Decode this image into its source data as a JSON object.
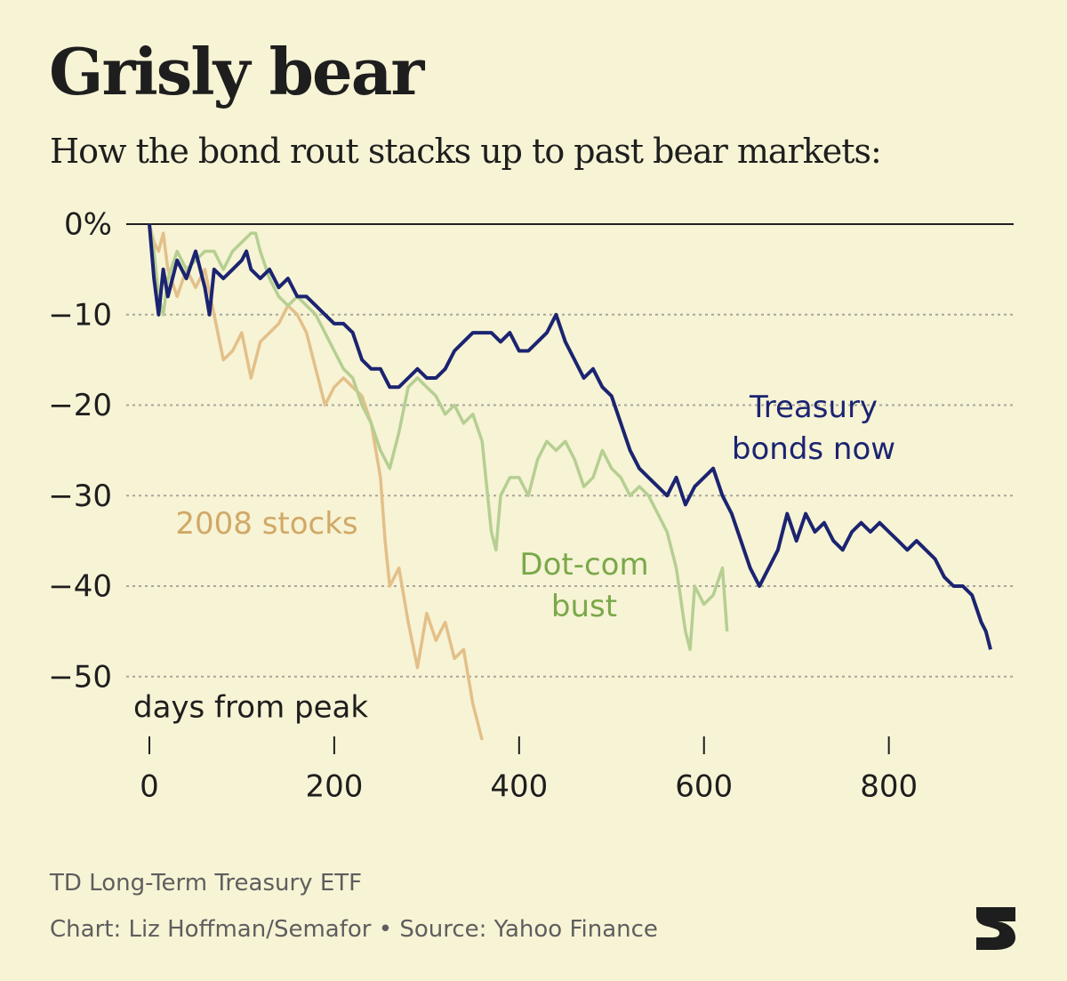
{
  "chart_data": {
    "type": "line",
    "title": "Grisly bear",
    "subtitle": "How the bond rout stacks up to past bear markets:",
    "x_label": "days from peak",
    "note": "TD Long-Term Treasury ETF",
    "source": "Chart: Liz Hoffman/Semafor • Source: Yahoo Finance",
    "xlim": [
      -25,
      935
    ],
    "xticks": [
      0,
      200,
      400,
      600,
      800
    ],
    "ylim": [
      -57,
      0
    ],
    "yticks": [
      {
        "value": 0,
        "label": "0%"
      },
      {
        "value": -10,
        "label": "−10"
      },
      {
        "value": -20,
        "label": "−20"
      },
      {
        "value": -30,
        "label": "−30"
      },
      {
        "value": -40,
        "label": "−40"
      },
      {
        "value": -50,
        "label": "−50"
      }
    ],
    "grid": true,
    "series": [
      {
        "name": "2008 stocks",
        "color": "#e3c089",
        "x": [
          0,
          5,
          10,
          15,
          20,
          30,
          40,
          50,
          60,
          70,
          80,
          90,
          100,
          110,
          120,
          130,
          140,
          150,
          160,
          170,
          180,
          190,
          200,
          210,
          220,
          230,
          240,
          250,
          255,
          260,
          270,
          280,
          290,
          300,
          310,
          320,
          330,
          340,
          350,
          355,
          360
        ],
        "values": [
          0,
          -2,
          -3,
          -1,
          -5,
          -8,
          -5,
          -7,
          -5,
          -10,
          -15,
          -14,
          -12,
          -17,
          -13,
          -12,
          -11,
          -9,
          -10,
          -12,
          -16,
          -20,
          -18,
          -17,
          -18,
          -19,
          -22,
          -28,
          -35,
          -40,
          -38,
          -44,
          -49,
          -43,
          -46,
          -44,
          -48,
          -47,
          -53,
          -55,
          -57
        ]
      },
      {
        "name": "Dot-com bust",
        "color": "#b5cf91",
        "x": [
          0,
          5,
          10,
          15,
          20,
          30,
          40,
          50,
          60,
          70,
          80,
          90,
          100,
          110,
          115,
          120,
          130,
          140,
          150,
          160,
          170,
          180,
          190,
          200,
          210,
          220,
          230,
          240,
          250,
          260,
          270,
          280,
          290,
          300,
          310,
          320,
          330,
          340,
          350,
          360,
          370,
          375,
          380,
          390,
          400,
          410,
          420,
          430,
          440,
          450,
          460,
          470,
          480,
          490,
          500,
          510,
          520,
          530,
          540,
          550,
          560,
          570,
          580,
          585,
          590,
          600,
          610,
          620,
          625
        ],
        "values": [
          0,
          -3,
          -8,
          -10,
          -6,
          -3,
          -5,
          -4,
          -3,
          -3,
          -5,
          -3,
          -2,
          -1,
          -1,
          -3,
          -6,
          -8,
          -9,
          -8,
          -9,
          -10,
          -12,
          -14,
          -16,
          -17,
          -20,
          -22,
          -25,
          -27,
          -23,
          -18,
          -17,
          -18,
          -19,
          -21,
          -20,
          -22,
          -21,
          -24,
          -34,
          -36,
          -30,
          -28,
          -28,
          -30,
          -26,
          -24,
          -25,
          -24,
          -26,
          -29,
          -28,
          -25,
          -27,
          -28,
          -30,
          -29,
          -30,
          -32,
          -34,
          -38,
          -45,
          -47,
          -40,
          -42,
          -41,
          -38,
          -45
        ]
      },
      {
        "name": "Treasury bonds now",
        "color": "#1b2470",
        "x": [
          0,
          5,
          10,
          15,
          20,
          30,
          40,
          50,
          60,
          65,
          70,
          80,
          90,
          100,
          105,
          110,
          120,
          130,
          140,
          150,
          160,
          170,
          180,
          190,
          200,
          210,
          220,
          230,
          240,
          250,
          260,
          270,
          280,
          290,
          300,
          310,
          320,
          330,
          340,
          350,
          360,
          370,
          380,
          390,
          400,
          410,
          420,
          430,
          440,
          450,
          460,
          470,
          480,
          490,
          500,
          510,
          520,
          530,
          540,
          550,
          560,
          570,
          580,
          590,
          600,
          610,
          620,
          630,
          640,
          650,
          660,
          670,
          680,
          690,
          700,
          710,
          720,
          730,
          740,
          750,
          760,
          770,
          780,
          790,
          800,
          810,
          820,
          830,
          840,
          850,
          860,
          870,
          880,
          890,
          900,
          905,
          910
        ],
        "values": [
          0,
          -6,
          -10,
          -5,
          -8,
          -4,
          -6,
          -3,
          -7,
          -10,
          -5,
          -6,
          -5,
          -4,
          -3,
          -5,
          -6,
          -5,
          -7,
          -6,
          -8,
          -8,
          -9,
          -10,
          -11,
          -11,
          -12,
          -15,
          -16,
          -16,
          -18,
          -18,
          -17,
          -16,
          -17,
          -17,
          -16,
          -14,
          -13,
          -12,
          -12,
          -12,
          -13,
          -12,
          -14,
          -14,
          -13,
          -12,
          -10,
          -13,
          -15,
          -17,
          -16,
          -18,
          -19,
          -22,
          -25,
          -27,
          -28,
          -29,
          -30,
          -28,
          -31,
          -29,
          -28,
          -27,
          -30,
          -32,
          -35,
          -38,
          -40,
          -38,
          -36,
          -32,
          -35,
          -32,
          -34,
          -33,
          -35,
          -36,
          -34,
          -33,
          -34,
          -33,
          -34,
          -35,
          -36,
          -35,
          -36,
          -37,
          -39,
          -40,
          -40,
          -41,
          -44,
          -45,
          -47
        ]
      }
    ]
  }
}
